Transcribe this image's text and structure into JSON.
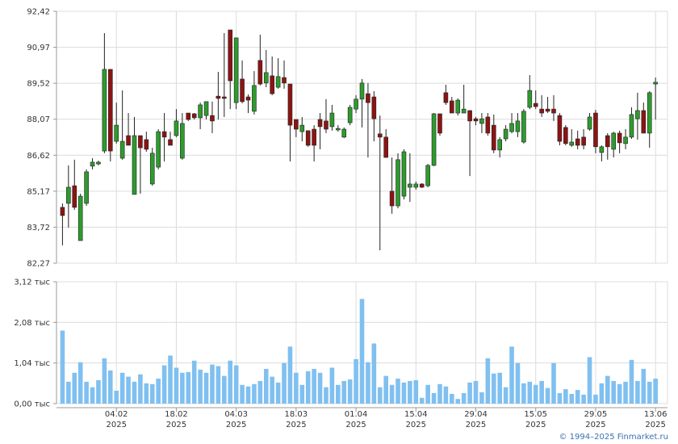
{
  "chart_data": [
    {
      "type": "candlestick",
      "open": [
        84.52,
        84.68,
        85.39,
        83.18,
        84.68,
        86.18,
        86.27,
        86.79,
        90.08,
        87.18,
        86.5,
        87.41,
        85.04,
        87.41,
        87.25,
        85.46,
        86.14,
        87.57,
        87.25,
        87.41,
        86.5,
        88.32,
        88.29,
        88.13,
        88.22,
        88.22,
        89.0,
        88.97,
        91.67,
        88.74,
        89.69,
        88.97,
        88.39,
        90.44,
        89.53,
        89.82,
        89.36,
        89.75,
        89.49,
        88.06,
        87.57,
        87.61,
        87.67,
        88.06,
        88.0,
        87.77,
        87.64,
        87.35,
        87.93,
        88.48,
        88.88,
        89.1,
        88.97,
        87.48,
        87.35,
        85.17,
        84.58,
        84.97,
        85.33,
        85.33,
        85.46,
        85.39,
        86.21,
        88.29,
        89.14,
        88.81,
        88.32,
        88.32,
        88.42,
        88.09,
        87.9,
        88.16,
        87.83,
        86.83,
        87.28,
        87.57,
        87.57,
        87.15,
        88.55,
        88.71,
        88.48,
        88.48,
        88.48,
        88.22,
        87.74,
        87.02,
        87.28,
        87.35,
        87.67,
        88.32,
        86.73,
        87.41,
        86.86,
        87.51,
        87.09,
        87.35,
        88.09,
        88.42,
        87.51,
        89.49
      ],
      "high": [
        84.68,
        86.21,
        86.44,
        85.07,
        86.05,
        86.5,
        86.4,
        91.54,
        90.08,
        88.74,
        89.23,
        88.32,
        88.16,
        87.41,
        87.57,
        86.92,
        87.67,
        88.32,
        87.57,
        88.48,
        88.32,
        88.32,
        88.32,
        88.74,
        88.78,
        88.78,
        89.98,
        91.54,
        91.67,
        91.35,
        90.44,
        89.07,
        90.01,
        91.48,
        90.86,
        90.6,
        90.53,
        90.44,
        89.49,
        88.06,
        88.16,
        87.61,
        87.83,
        88.32,
        88.88,
        88.65,
        87.83,
        87.74,
        88.65,
        89.04,
        89.69,
        89.53,
        89.2,
        88.22,
        87.67,
        86.53,
        86.7,
        86.86,
        86.7,
        85.56,
        85.49,
        86.27,
        88.32,
        88.29,
        89.46,
        88.97,
        88.91,
        89.46,
        88.42,
        88.16,
        88.32,
        88.32,
        88.26,
        87.35,
        87.83,
        88.32,
        88.32,
        88.48,
        89.85,
        89.23,
        89.04,
        88.97,
        89.04,
        88.32,
        87.83,
        87.67,
        87.61,
        87.67,
        88.32,
        88.45,
        87.02,
        87.51,
        87.57,
        87.61,
        87.67,
        88.55,
        89.14,
        88.74,
        89.2,
        89.75
      ],
      "low": [
        82.99,
        83.7,
        84.42,
        83.18,
        84.58,
        86.05,
        86.21,
        86.7,
        86.37,
        87.09,
        86.44,
        87.02,
        85.04,
        85.07,
        86.76,
        85.39,
        86.05,
        86.37,
        87.02,
        87.35,
        86.44,
        88.0,
        88.06,
        87.67,
        88.06,
        87.51,
        88.06,
        88.16,
        88.48,
        88.48,
        88.71,
        88.32,
        88.26,
        89.43,
        89.36,
        89.04,
        89.3,
        89.3,
        86.37,
        87.35,
        87.18,
        86.96,
        86.37,
        86.86,
        87.51,
        87.61,
        87.57,
        87.31,
        87.83,
        88.32,
        87.74,
        86.53,
        87.18,
        82.79,
        86.53,
        84.26,
        84.48,
        84.84,
        84.74,
        85.23,
        85.3,
        85.33,
        86.18,
        87.41,
        88.65,
        88.32,
        88.22,
        88.32,
        85.78,
        87.83,
        87.51,
        87.41,
        86.7,
        86.53,
        87.18,
        87.51,
        87.35,
        87.09,
        88.48,
        88.48,
        88.16,
        88.32,
        88.0,
        87.02,
        87.02,
        86.96,
        86.86,
        86.86,
        87.61,
        86.7,
        86.37,
        86.44,
        86.53,
        86.7,
        86.86,
        87.28,
        87.25,
        87.51,
        86.92,
        88.06
      ],
      "close": [
        84.19,
        85.33,
        84.52,
        84.97,
        85.95,
        86.34,
        86.34,
        90.08,
        86.79,
        87.83,
        87.18,
        87.02,
        87.41,
        86.92,
        86.86,
        86.7,
        87.57,
        87.35,
        87.02,
        88.0,
        87.9,
        88.06,
        88.13,
        88.65,
        88.78,
        88.0,
        88.91,
        88.91,
        89.62,
        91.35,
        88.78,
        88.84,
        89.43,
        89.49,
        89.95,
        89.1,
        89.79,
        89.53,
        87.83,
        87.67,
        87.83,
        87.02,
        87.02,
        87.77,
        87.67,
        88.32,
        87.7,
        87.67,
        88.55,
        88.88,
        89.53,
        88.74,
        88.09,
        87.35,
        86.53,
        84.58,
        86.44,
        86.76,
        85.46,
        85.46,
        85.33,
        86.21,
        88.29,
        87.51,
        88.74,
        88.32,
        88.84,
        88.48,
        88.0,
        88.0,
        88.09,
        87.51,
        86.83,
        87.25,
        87.67,
        87.9,
        88.0,
        88.39,
        89.23,
        88.58,
        88.32,
        88.39,
        88.32,
        87.18,
        87.09,
        87.15,
        87.02,
        87.02,
        88.16,
        86.96,
        86.96,
        86.96,
        87.51,
        87.12,
        87.35,
        88.26,
        88.42,
        87.51,
        89.14,
        89.56
      ],
      "up_color": "#2e9b2e",
      "down_color": "#8c1414",
      "ylim": [
        82.27,
        92.42
      ],
      "yticks": [
        {
          "value": 82.27,
          "label": "82,27"
        },
        {
          "value": 83.72,
          "label": "83,72"
        },
        {
          "value": 85.17,
          "label": "85,17"
        },
        {
          "value": 86.62,
          "label": "86,62"
        },
        {
          "value": 88.07,
          "label": "88,07"
        },
        {
          "value": 89.52,
          "label": "89,52"
        },
        {
          "value": 90.97,
          "label": "90,97"
        },
        {
          "value": 92.42,
          "label": "92,42"
        }
      ],
      "xlim": [
        -1,
        101
      ],
      "grid": true
    },
    {
      "type": "bar",
      "values": [
        1.87,
        0.56,
        0.79,
        1.06,
        0.56,
        0.42,
        0.6,
        1.16,
        0.85,
        0.33,
        0.79,
        0.69,
        0.56,
        0.75,
        0.52,
        0.5,
        0.64,
        0.98,
        1.23,
        0.92,
        0.79,
        0.81,
        1.1,
        0.87,
        0.79,
        1.0,
        0.96,
        0.71,
        1.1,
        0.98,
        0.48,
        0.44,
        0.5,
        0.58,
        0.89,
        0.69,
        0.54,
        1.04,
        1.46,
        0.79,
        0.48,
        0.83,
        0.89,
        0.79,
        0.42,
        0.92,
        0.48,
        0.58,
        0.62,
        1.14,
        2.68,
        1.06,
        1.54,
        0.42,
        0.71,
        0.48,
        0.64,
        0.54,
        0.58,
        0.6,
        0.15,
        0.48,
        0.27,
        0.5,
        0.44,
        0.25,
        0.12,
        0.27,
        0.54,
        0.58,
        0.29,
        1.16,
        0.77,
        0.79,
        0.42,
        1.46,
        1.04,
        0.52,
        0.56,
        0.48,
        0.58,
        0.4,
        1.04,
        0.27,
        0.37,
        0.25,
        0.35,
        0.23,
        1.19,
        0.23,
        0.52,
        0.71,
        0.58,
        0.5,
        0.56,
        1.12,
        0.58,
        0.89,
        0.56,
        0.64
      ],
      "color": "#80c0f0",
      "ylim": [
        0,
        3.12
      ],
      "yticks": [
        {
          "value": 0,
          "label": "0,00 тыс"
        },
        {
          "value": 1.04,
          "label": "1,04 тыс"
        },
        {
          "value": 2.08,
          "label": "2,08 тыс"
        },
        {
          "value": 3.12,
          "label": "3,12 тыс"
        }
      ],
      "xlim": [
        -1,
        101
      ],
      "xticks": [
        {
          "value": 9,
          "label": "04.02\n2025"
        },
        {
          "value": 19,
          "label": "18.02\n2025"
        },
        {
          "value": 29,
          "label": "04.03\n2025"
        },
        {
          "value": 39,
          "label": "18.03\n2025"
        },
        {
          "value": 49,
          "label": "01.04\n2025"
        },
        {
          "value": 59,
          "label": "15.04\n2025"
        },
        {
          "value": 69,
          "label": "29.04\n2025"
        },
        {
          "value": 79,
          "label": "15.05\n2025"
        },
        {
          "value": 89,
          "label": "29.05\n2025"
        },
        {
          "value": 99,
          "label": "13.06\n2025"
        }
      ],
      "grid": true
    }
  ],
  "credit": "© 1994–2025 Finmarket.ru"
}
